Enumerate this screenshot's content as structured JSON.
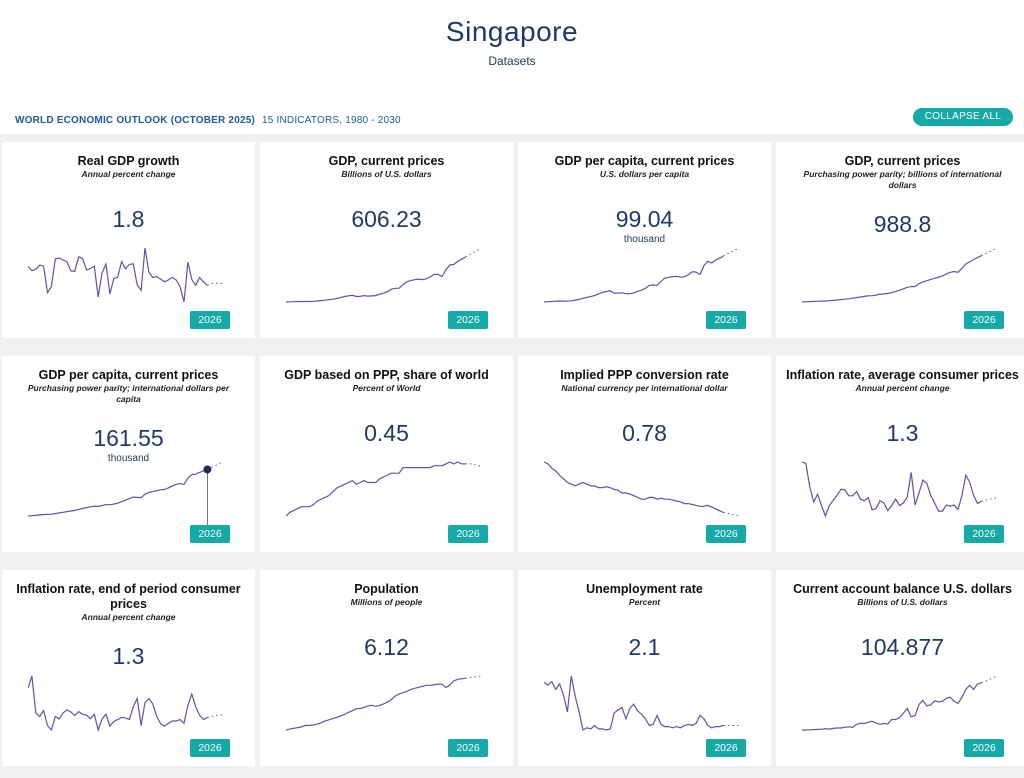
{
  "header": {
    "title": "Singapore",
    "subtitle": "Datasets"
  },
  "toolbar": {
    "outlook": "WORLD ECONOMIC OUTLOOK (OCTOBER 2025)",
    "indicators": "15 INDICATORS, 1980 - 2030",
    "collapse_label": "COLLAPSE ALL"
  },
  "colors": {
    "accent": "#16a9a7",
    "line": "#5a55b0",
    "title": "#1f3a68"
  },
  "cards": [
    {
      "title": "Real GDP growth",
      "unit": "Annual percent change",
      "value": "1.8",
      "suffix": "",
      "year": "2026",
      "series": [
        8.2,
        6.8,
        7.2,
        8.7,
        8.3,
        -0.7,
        1.3,
        10.8,
        11.1,
        10.4,
        9.8,
        6.7,
        6.6,
        11.5,
        10.9,
        7.0,
        7.5,
        8.3,
        -2.2,
        6.1,
        9.0,
        -1.1,
        4.0,
        4.6,
        9.9,
        7.4,
        8.9,
        9.1,
        1.9,
        0.1,
        14.5,
        6.3,
        4.4,
        4.8,
        3.9,
        3.0,
        3.6,
        4.5,
        3.6,
        1.3,
        -3.9,
        9.7,
        3.8,
        1.8,
        4.4,
        3.0,
        1.8,
        2.4,
        2.5,
        2.5,
        2.5
      ]
    },
    {
      "title": "GDP, current prices",
      "unit": "Billions of U.S. dollars",
      "value": "606.23",
      "suffix": "",
      "year": "2026",
      "series": [
        12,
        14,
        16,
        18,
        19,
        19,
        18,
        21,
        25,
        30,
        36,
        43,
        49,
        58,
        70,
        84,
        92,
        100,
        85,
        86,
        96,
        90,
        92,
        97,
        115,
        128,
        148,
        181,
        193,
        194,
        240,
        279,
        295,
        307,
        315,
        308,
        318,
        343,
        377,
        376,
        349,
        434,
        501,
        507,
        547,
        574,
        606,
        635,
        665,
        695,
        725
      ]
    },
    {
      "title": "GDP per capita, current prices",
      "unit": "U.S. dollars per capita",
      "value": "99.04",
      "suffix": "thousand",
      "year": "2026",
      "series": [
        5.0,
        5.6,
        6.1,
        6.6,
        7.0,
        6.8,
        6.6,
        7.5,
        8.9,
        10.4,
        12.8,
        14.5,
        16.1,
        18.4,
        21.6,
        24.7,
        26.4,
        27.9,
        23.3,
        23.3,
        23.9,
        22.0,
        22.0,
        23.3,
        27.0,
        29.0,
        33.0,
        39.0,
        39.7,
        38.9,
        47.2,
        53.9,
        55.6,
        56.9,
        57.6,
        55.6,
        56.8,
        61.1,
        66.7,
        66.1,
        61.3,
        79.4,
        88.4,
        85.0,
        90.7,
        94.5,
        99.0,
        103.5,
        107.5,
        111.5,
        115.5
      ]
    },
    {
      "title": "GDP, current prices",
      "unit": "Purchasing power parity; billions of international dollars",
      "value": "988.8",
      "suffix": "",
      "year": "2026",
      "series": [
        22,
        26,
        30,
        34,
        38,
        40,
        43,
        49,
        56,
        64,
        72,
        80,
        89,
        101,
        114,
        126,
        138,
        151,
        153,
        166,
        187,
        189,
        201,
        217,
        243,
        268,
        298,
        330,
        342,
        345,
        405,
        441,
        467,
        495,
        519,
        538,
        567,
        605,
        642,
        660,
        643,
        727,
        815,
        860,
        910,
        950,
        989,
        1030,
        1070,
        1110,
        1150
      ]
    },
    {
      "title": "GDP per capita, current prices",
      "unit": "Purchasing power parity; international dollars per capita",
      "value": "161.55",
      "suffix": "thousand",
      "year": "2026",
      "series": [
        9,
        10,
        11,
        12.5,
        14,
        14.5,
        15,
        17,
        19,
        21,
        23.5,
        25.5,
        27.5,
        30.5,
        33.5,
        36.5,
        39,
        41.5,
        40.5,
        43,
        46.5,
        46,
        48,
        51,
        56,
        61,
        66,
        71,
        70,
        69,
        80,
        86,
        89,
        92,
        95,
        96,
        101,
        107,
        113,
        115,
        113,
        133,
        145,
        146,
        152,
        157,
        161.55,
        168,
        174,
        180,
        186
      ],
      "highlight": 46
    },
    {
      "title": "GDP based on PPP, share of world",
      "unit": "Percent of World",
      "value": "0.45",
      "suffix": "",
      "year": "2026",
      "series": [
        0.17,
        0.19,
        0.2,
        0.21,
        0.22,
        0.22,
        0.22,
        0.23,
        0.25,
        0.26,
        0.27,
        0.28,
        0.3,
        0.32,
        0.33,
        0.34,
        0.35,
        0.36,
        0.34,
        0.35,
        0.36,
        0.35,
        0.35,
        0.35,
        0.37,
        0.38,
        0.39,
        0.4,
        0.4,
        0.4,
        0.43,
        0.43,
        0.43,
        0.43,
        0.43,
        0.43,
        0.43,
        0.43,
        0.44,
        0.44,
        0.44,
        0.45,
        0.46,
        0.45,
        0.46,
        0.45,
        0.45,
        0.45,
        0.45,
        0.44,
        0.44
      ]
    },
    {
      "title": "Implied PPP conversion rate",
      "unit": "National currency per international dollar",
      "value": "0.78",
      "suffix": "",
      "year": "2026",
      "series": [
        1.35,
        1.33,
        1.28,
        1.25,
        1.2,
        1.16,
        1.12,
        1.1,
        1.08,
        1.1,
        1.12,
        1.1,
        1.08,
        1.08,
        1.06,
        1.06,
        1.07,
        1.06,
        1.04,
        1.03,
        1.0,
        1.0,
        0.99,
        0.97,
        0.95,
        0.93,
        0.93,
        0.95,
        0.95,
        0.93,
        0.94,
        0.93,
        0.93,
        0.92,
        0.91,
        0.9,
        0.88,
        0.88,
        0.87,
        0.86,
        0.85,
        0.85,
        0.86,
        0.84,
        0.82,
        0.8,
        0.78,
        0.77,
        0.76,
        0.75,
        0.74
      ]
    },
    {
      "title": "Inflation rate, average consumer prices",
      "unit": "Annual percent change",
      "value": "1.3",
      "suffix": "",
      "year": "2026",
      "series": [
        8.5,
        8.2,
        3.9,
        1.2,
        2.6,
        0.5,
        -1.4,
        0.5,
        1.5,
        2.4,
        3.5,
        3.4,
        2.3,
        2.3,
        3.1,
        1.7,
        1.4,
        2.0,
        -0.3,
        0.0,
        1.4,
        1.0,
        -0.4,
        0.5,
        1.7,
        0.5,
        1.0,
        2.1,
        6.6,
        0.6,
        2.8,
        5.2,
        4.6,
        2.4,
        1.0,
        -0.5,
        -0.5,
        0.6,
        0.4,
        0.6,
        -0.2,
        2.3,
        6.1,
        4.8,
        2.4,
        0.9,
        1.3,
        1.5,
        1.7,
        1.8,
        1.9
      ]
    },
    {
      "title": "Inflation rate, end of period consumer prices",
      "unit": "Annual percent change",
      "value": "1.3",
      "suffix": "",
      "year": "2026",
      "series": [
        7.8,
        10.5,
        2.3,
        1.5,
        2.8,
        -0.5,
        -1.5,
        1.5,
        1.0,
        2.3,
        3.0,
        2.5,
        1.7,
        2.6,
        2.0,
        1.8,
        1.0,
        2.0,
        -1.5,
        1.0,
        2.0,
        -0.6,
        0.4,
        0.8,
        1.3,
        1.2,
        0.8,
        3.7,
        5.5,
        -0.5,
        4.6,
        5.5,
        4.3,
        1.5,
        -0.1,
        -0.6,
        0.0,
        0.5,
        0.5,
        0.8,
        0.0,
        4.0,
        6.5,
        3.7,
        1.8,
        0.8,
        1.3,
        1.5,
        1.7,
        1.8,
        1.9
      ]
    },
    {
      "title": "Population",
      "unit": "Millions of people",
      "value": "6.12",
      "suffix": "",
      "year": "2026",
      "series": [
        2.41,
        2.49,
        2.53,
        2.58,
        2.63,
        2.74,
        2.73,
        2.77,
        2.85,
        2.93,
        3.05,
        3.14,
        3.23,
        3.31,
        3.42,
        3.52,
        3.67,
        3.79,
        3.93,
        3.95,
        4.03,
        4.14,
        4.18,
        4.11,
        4.17,
        4.27,
        4.4,
        4.59,
        4.84,
        4.99,
        5.08,
        5.18,
        5.31,
        5.4,
        5.47,
        5.54,
        5.61,
        5.61,
        5.64,
        5.7,
        5.69,
        5.45,
        5.64,
        5.92,
        6.04,
        6.08,
        6.12,
        6.16,
        6.2,
        6.24,
        6.28
      ]
    },
    {
      "title": "Unemployment rate",
      "unit": "Percent",
      "value": "2.1",
      "suffix": "",
      "year": "2026",
      "series": [
        5.9,
        5.7,
        6.0,
        5.3,
        5.8,
        4.8,
        3.3,
        6.5,
        4.7,
        3.3,
        1.7,
        1.9,
        1.8,
        2.1,
        1.8,
        1.8,
        1.7,
        1.8,
        3.2,
        3.5,
        3.7,
        2.7,
        3.6,
        4.0,
        3.4,
        3.1,
        2.7,
        2.1,
        2.2,
        3.0,
        2.2,
        2.0,
        2.0,
        1.9,
        2.0,
        1.9,
        2.1,
        2.2,
        2.1,
        2.3,
        3.0,
        2.7,
        2.1,
        1.9,
        2.0,
        2.0,
        2.1,
        2.1,
        2.1,
        2.1,
        2.1
      ]
    },
    {
      "title": "Current account balance U.S. dollars",
      "unit": "Billions of U.S. dollars",
      "value": "104.877",
      "suffix": "",
      "year": "2026",
      "series": [
        -1.6,
        -1.5,
        -1.2,
        -0.6,
        -0.3,
        0,
        1.5,
        0.5,
        1.9,
        2.9,
        3.0,
        4.5,
        5.5,
        4.3,
        11,
        14,
        13,
        16,
        18,
        14,
        11,
        13,
        12,
        22,
        22,
        26,
        36,
        47,
        28,
        31,
        56,
        65,
        53,
        55,
        64,
        62,
        63,
        70,
        72,
        63,
        58,
        72,
        90,
        99,
        90,
        102,
        105,
        108,
        112,
        116,
        120
      ]
    }
  ]
}
